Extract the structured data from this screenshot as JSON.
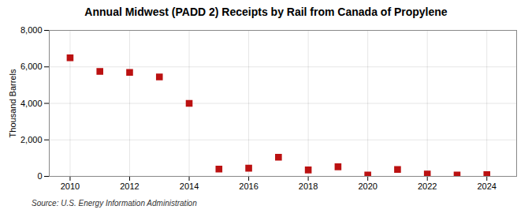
{
  "chart_data": {
    "type": "scatter",
    "title": "Annual Midwest (PADD 2) Receipts by Rail from Canada of Propylene",
    "ylabel": "Thousand Barrels",
    "source": "Source: U.S. Energy Information Administration",
    "x": [
      2010,
      2011,
      2012,
      2013,
      2014,
      2015,
      2016,
      2017,
      2018,
      2019,
      2020,
      2021,
      2022,
      2023,
      2024
    ],
    "values": [
      6500,
      5750,
      5700,
      5450,
      4000,
      400,
      450,
      1050,
      350,
      525,
      75,
      375,
      125,
      75,
      100
    ],
    "color": "#bb1111",
    "marker": "square",
    "xlim": [
      2009.3,
      2025.0
    ],
    "xticks": [
      2010,
      2012,
      2014,
      2016,
      2018,
      2020,
      2022,
      2024
    ],
    "ylim": [
      0,
      8000
    ],
    "yticks": [
      0,
      {
        "value": 2000,
        "label": "2,000"
      },
      {
        "value": 4000,
        "label": "4,000"
      },
      {
        "value": 6000,
        "label": "6,000"
      },
      {
        "value": 8000,
        "label": "8,000"
      }
    ],
    "grid": true
  }
}
